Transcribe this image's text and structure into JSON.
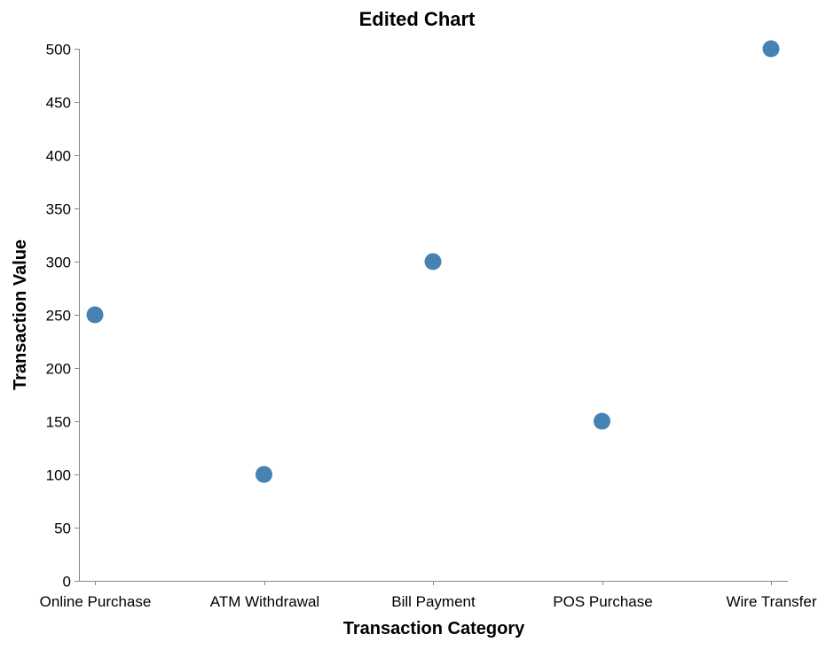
{
  "chart_data": {
    "type": "scatter",
    "title": "Edited Chart",
    "xlabel": "Transaction Category",
    "ylabel": "Transaction Value",
    "categories": [
      "Online Purchase",
      "ATM Withdrawal",
      "Bill Payment",
      "POS Purchase",
      "Wire Transfer"
    ],
    "values": [
      250,
      100,
      300,
      150,
      500
    ],
    "ylim": [
      0,
      500
    ],
    "yticks": [
      0,
      50,
      100,
      150,
      200,
      250,
      300,
      350,
      400,
      450,
      500
    ],
    "grid": false,
    "legend": "none",
    "point_color": "#4682b4"
  }
}
